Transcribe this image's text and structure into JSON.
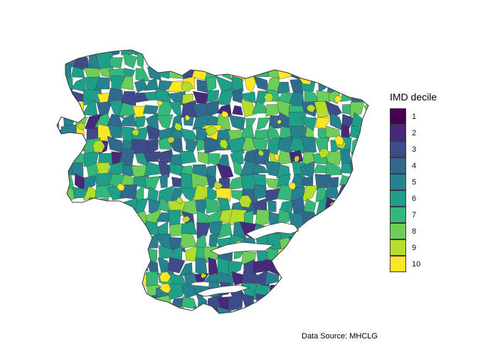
{
  "legend": {
    "title": "IMD decile",
    "items": [
      {
        "label": "1",
        "color": "#440154"
      },
      {
        "label": "2",
        "color": "#482878"
      },
      {
        "label": "3",
        "color": "#3e4a89"
      },
      {
        "label": "4",
        "color": "#31688e"
      },
      {
        "label": "5",
        "color": "#26828e"
      },
      {
        "label": "6",
        "color": "#1f9e89"
      },
      {
        "label": "7",
        "color": "#35b779"
      },
      {
        "label": "8",
        "color": "#6ece58"
      },
      {
        "label": "9",
        "color": "#b5de2b"
      },
      {
        "label": "10",
        "color": "#fde725"
      }
    ]
  },
  "caption": "Data Source: MHCLG",
  "border_color": "#3a3a3a",
  "background_color": "#ffffff"
}
